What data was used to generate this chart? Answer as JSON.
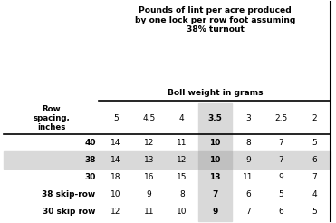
{
  "title_line1": "Pounds of lint per acre produced",
  "title_line2": "by one lock per row foot assuming",
  "title_line3": "38% turnout",
  "subtitle": "Boll weight in grams",
  "col_header_label": "Row\nspacing,\ninches",
  "col_headers": [
    "5",
    "4.5",
    "4",
    "3.5",
    "3",
    "2.5",
    "2"
  ],
  "rows": [
    {
      "label": "40",
      "values": [
        14,
        12,
        11,
        10,
        8,
        7,
        5
      ]
    },
    {
      "label": "38",
      "values": [
        14,
        13,
        12,
        10,
        9,
        7,
        6
      ]
    },
    {
      "label": "30",
      "values": [
        18,
        16,
        15,
        13,
        11,
        9,
        7
      ]
    },
    {
      "label": "38 skip-row",
      "values": [
        10,
        9,
        8,
        7,
        6,
        5,
        4
      ]
    },
    {
      "label": "30 skip row",
      "values": [
        12,
        11,
        10,
        9,
        7,
        6,
        5
      ]
    }
  ],
  "highlighted_col_idx": 3,
  "highlighted_row_idx": 1,
  "col_highlight_color": "#d9d9d9",
  "row_highlight_color": "#d9d9d9",
  "cell_highlight_color": "#c0c0c0",
  "background_color": "#ffffff",
  "text_color": "#000000"
}
